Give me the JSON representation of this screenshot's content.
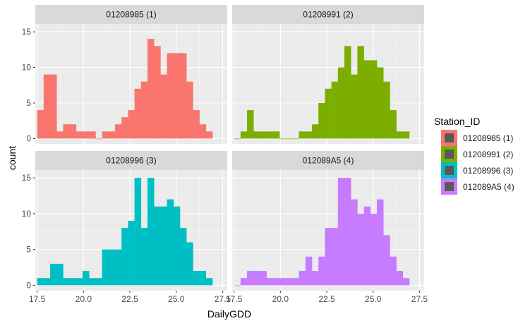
{
  "chart_data": {
    "type": "histogram-facets",
    "xlabel": "DailyGDD",
    "ylabel": "count",
    "x_ticks": [
      17.5,
      20.0,
      22.5,
      25.0,
      27.5
    ],
    "x_tick_labels": [
      "17.5",
      "20.0",
      "22.5",
      "25.0",
      "27.5"
    ],
    "y_ticks": [
      0,
      5,
      10,
      15
    ],
    "y_tick_labels": [
      "0",
      "5",
      "10",
      "15"
    ],
    "xlim": [
      17.4,
      27.75
    ],
    "ylim": [
      -0.75,
      16.1
    ],
    "bin_width": 0.35,
    "bin_start": 17.5,
    "facet_layout": "2x2",
    "grid": true,
    "legend": {
      "title": "Station_ID",
      "position": "right",
      "entries": [
        "01208985 (1)",
        "01208991 (2)",
        "01208996 (3)",
        "012089A5 (4)"
      ]
    },
    "series": [
      {
        "name": "01208985 (1)",
        "color": "#F8766D",
        "counts": [
          4,
          9,
          9,
          1,
          2,
          2,
          1,
          1,
          1,
          0,
          1,
          1,
          2,
          3,
          4,
          7,
          8,
          14,
          13,
          9,
          12,
          12,
          12,
          8,
          4,
          2,
          1
        ]
      },
      {
        "name": "01208991 (2)",
        "color": "#7CAE00",
        "counts": [
          0,
          1,
          4,
          1,
          1,
          1,
          1,
          0,
          0,
          0,
          1,
          1,
          2,
          5,
          7,
          8,
          10,
          13,
          9,
          13,
          11,
          11,
          10,
          8,
          4,
          1,
          1
        ]
      },
      {
        "name": "01208996 (3)",
        "color": "#00BFC4",
        "counts": [
          1,
          1,
          3,
          3,
          1,
          1,
          1,
          2,
          1,
          1,
          5,
          5,
          5,
          8,
          9,
          15,
          8,
          15,
          11,
          11,
          12,
          11,
          8,
          6,
          2,
          2,
          1
        ]
      },
      {
        "name": "012089A5 (4)",
        "color": "#C77CFF",
        "counts": [
          0,
          1,
          2,
          2,
          2,
          1,
          1,
          1,
          1,
          1,
          2,
          4,
          2,
          4,
          8,
          8,
          15,
          15,
          12,
          10,
          11,
          10,
          12,
          7,
          4,
          2,
          1
        ]
      }
    ]
  }
}
